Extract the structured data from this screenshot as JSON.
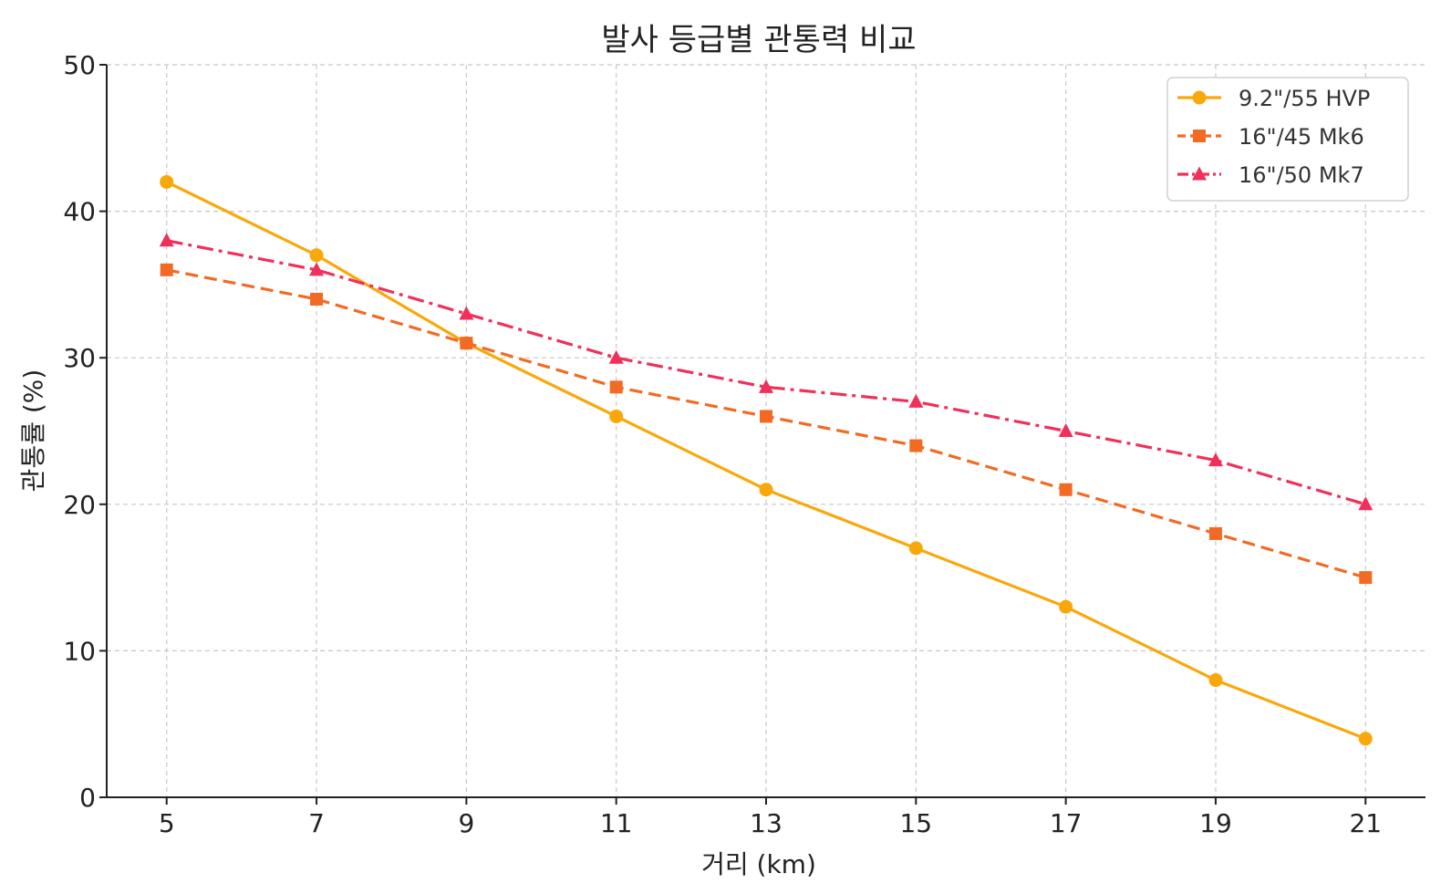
{
  "chart_data": {
    "type": "line",
    "title": "발사 등급별 관통력 비교",
    "xlabel": "거리 (km)",
    "ylabel": "관통률 (%)",
    "x": [
      5,
      7,
      9,
      11,
      13,
      15,
      17,
      19,
      21
    ],
    "xlim": [
      4.2,
      21.8
    ],
    "ylim": [
      0,
      50
    ],
    "x_ticks": [
      "5",
      "7",
      "9",
      "11",
      "13",
      "15",
      "17",
      "19",
      "21"
    ],
    "y_ticks": [
      "0",
      "10",
      "20",
      "30",
      "40",
      "50"
    ],
    "grid": true,
    "legend_position": "top-right",
    "series": [
      {
        "name": "9.2\"/55 HVP",
        "values": [
          42,
          37,
          31,
          26,
          21,
          17,
          13,
          8,
          4
        ],
        "color": "#F9A80A",
        "marker": "circle",
        "line_style": "solid"
      },
      {
        "name": "16\"/45 Mk6",
        "values": [
          36,
          34,
          31,
          28,
          26,
          24,
          21,
          18,
          15
        ],
        "color": "#F26A23",
        "marker": "square",
        "line_style": "dashed"
      },
      {
        "name": "16\"/50 Mk7",
        "values": [
          38,
          36,
          33,
          30,
          28,
          27,
          25,
          23,
          20
        ],
        "color": "#F0305A",
        "marker": "triangle",
        "line_style": "dashdot"
      }
    ]
  }
}
